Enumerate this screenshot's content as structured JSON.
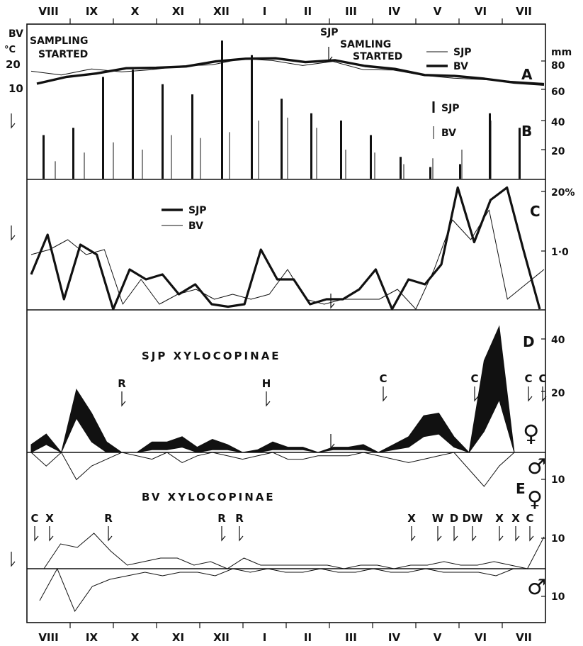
{
  "chart_data": {
    "type": "line",
    "months": [
      "VIII",
      "IX",
      "X",
      "XI",
      "XII",
      "I",
      "II",
      "III",
      "IV",
      "V",
      "VI",
      "VII"
    ],
    "panel_letters": [
      "A",
      "B",
      "C",
      "D",
      "E"
    ],
    "panel_A": {
      "left_unit": "°C",
      "right_unit": "mm",
      "left_ticks": [
        "20",
        "10"
      ],
      "right_ticks": [
        "80",
        "60",
        "40",
        "20"
      ],
      "notes": {
        "bv_start": [
          "BV",
          "SAMPLING",
          "STARTED"
        ],
        "sjp_start": [
          "SJP",
          "SAMLING",
          "STARTED"
        ]
      },
      "legend": [
        "SJP",
        "BV"
      ],
      "series": [
        {
          "name": "SJP",
          "values": [
            15.5,
            13.8,
            16.5,
            15.2,
            16.2,
            17.8,
            18.3,
            21.0,
            20.2,
            18.0,
            19.8,
            16.2,
            16.0,
            13.7,
            12.4,
            11.8,
            11.0,
            10.2
          ]
        },
        {
          "name": "BV",
          "values": [
            10.0,
            13.0,
            14.5,
            16.8,
            17.0,
            17.6,
            19.8,
            21.0,
            21.2,
            19.5,
            20.3,
            17.8,
            16.5,
            13.8,
            13.4,
            12.2,
            10.5,
            9.6
          ]
        }
      ]
    },
    "panel_B": {
      "legend": [
        "SJP",
        "BV"
      ],
      "rainfall_mm": {
        "SJP": [
          30,
          35,
          70,
          75,
          65,
          58,
          95,
          85,
          55,
          45,
          40,
          30,
          15,
          8,
          10,
          45,
          35
        ],
        "BV": [
          12,
          18,
          25,
          20,
          30,
          28,
          32,
          40,
          42,
          35,
          20,
          18,
          10,
          14,
          20,
          40,
          25
        ]
      }
    },
    "panel_C": {
      "right_ticks": [
        "20%",
        "1·0"
      ],
      "legend": [
        "SJP",
        "BV"
      ],
      "series": [
        {
          "name": "SJP",
          "values": [
            0.7,
            1.5,
            0.2,
            1.3,
            1.1,
            0.0,
            0.8,
            0.6,
            0.7,
            0.3,
            0.5,
            0.1,
            0.05,
            0.1,
            1.2,
            0.6,
            0.6,
            0.1,
            0.2,
            0.2,
            0.4,
            0.8,
            0.0,
            0.6,
            0.5,
            0.9,
            2.45,
            1.35,
            2.2,
            2.45,
            1.2,
            0.0
          ]
        },
        {
          "name": "BV",
          "values": [
            1.1,
            1.2,
            1.4,
            1.1,
            1.2,
            0.1,
            0.6,
            0.1,
            0.3,
            0.4,
            0.2,
            0.3,
            0.2,
            0.3,
            0.8,
            0.2,
            0.1,
            0.2,
            0.2,
            0.2,
            0.4,
            0.0,
            0.8,
            1.8,
            1.4,
            2.0,
            0.2,
            0.5,
            0.8
          ]
        }
      ]
    },
    "panel_D": {
      "title": "SJP XYLOCOPINAE",
      "right_ticks": [
        "40",
        "20"
      ],
      "female_symbol": "♀",
      "arrows": [
        "R",
        "H",
        "C",
        "C",
        "C",
        "C"
      ],
      "band_female": {
        "upper": [
          3,
          7,
          0,
          24,
          15,
          4,
          0,
          0,
          4,
          4,
          6,
          2,
          5,
          3,
          0,
          1,
          4,
          2,
          2,
          0,
          2,
          2,
          3,
          0,
          3,
          6,
          14,
          15,
          6,
          0,
          35,
          48,
          0
        ],
        "lower": [
          0,
          3,
          0,
          13,
          4,
          0,
          0,
          0,
          1,
          1,
          2,
          0,
          1,
          1,
          0,
          0,
          1,
          1,
          1,
          0,
          1,
          1,
          1,
          0,
          1,
          2,
          6,
          7,
          2,
          0,
          8,
          20,
          0
        ]
      }
    },
    "panel_E": {
      "letter": "E",
      "right_ticks": [
        "10",
        "10",
        "10"
      ],
      "male_symbol": "♂",
      "female_symbol": "♀",
      "title": "BV XYLOCOPINAE",
      "arrows": [
        "C",
        "X",
        "R",
        "R",
        "R",
        "X",
        "W",
        "D",
        "DW",
        "X",
        "X",
        "C"
      ],
      "sjp_male": [
        0,
        4,
        0,
        8,
        4,
        2,
        0,
        1,
        2,
        0,
        3,
        1,
        0,
        1,
        2,
        1,
        0,
        2,
        2,
        1,
        1,
        1,
        0,
        1,
        2,
        3,
        2,
        1,
        0,
        5,
        10,
        4,
        0
      ],
      "bv_female": [
        0,
        7,
        6,
        10,
        5,
        1,
        2,
        3,
        3,
        1,
        2,
        0,
        3,
        1,
        1,
        1,
        1,
        1,
        0,
        1,
        1,
        0,
        1,
        1,
        2,
        1,
        1,
        2,
        1,
        0,
        9
      ],
      "bv_male": [
        9,
        0,
        12,
        5,
        3,
        2,
        1,
        2,
        1,
        1,
        2,
        0,
        1,
        0,
        1,
        1,
        0,
        1,
        1,
        0,
        1,
        1,
        0,
        1,
        1,
        1,
        2,
        0
      ]
    }
  }
}
